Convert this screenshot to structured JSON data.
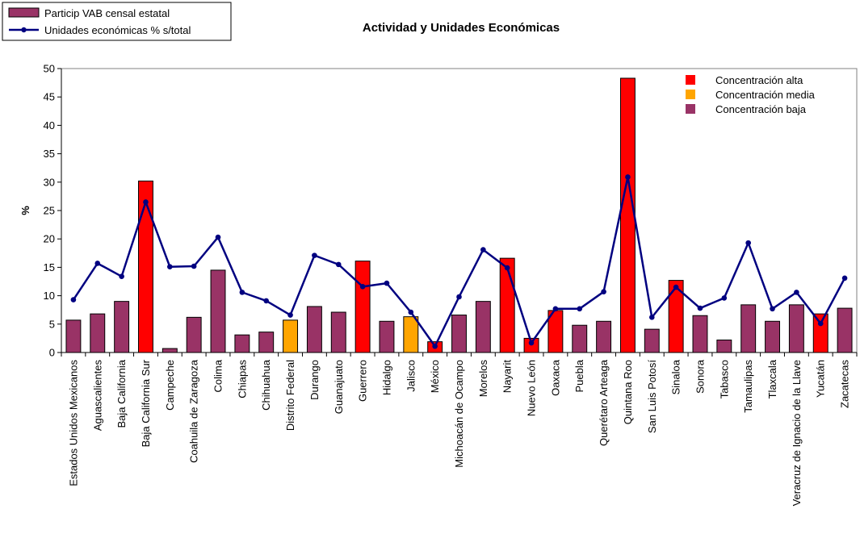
{
  "chart_data": {
    "type": "bar",
    "title": "Actividad y Unidades Económicas",
    "xlabel": "",
    "ylabel": "%",
    "ylim": [
      0,
      50
    ],
    "yticks": [
      0,
      5,
      10,
      15,
      20,
      25,
      30,
      35,
      40,
      45,
      50
    ],
    "grid": false,
    "categories": [
      "Estados Unidos Mexicanos",
      "Aguascalientes",
      "Baja California",
      "Baja California Sur",
      "Campeche",
      "Coahuila de Zaragoza",
      "Colima",
      "Chiapas",
      "Chihuahua",
      "Distrito Federal",
      "Durango",
      "Guanajuato",
      "Guerrero",
      "Hidalgo",
      "Jalisco",
      "México",
      "Michoacán de Ocampo",
      "Morelos",
      "Nayarit",
      "Nuevo León",
      "Oaxaca",
      "Puebla",
      "Querétaro Arteaga",
      "Quintana Roo",
      "San Luis Potosí",
      "Sinaloa",
      "Sonora",
      "Tabasco",
      "Tamaulipas",
      "Tlaxcala",
      "Veracruz de Ignacio de la Llave",
      "Yucatán",
      "Zacatecas"
    ],
    "series": [
      {
        "name": "Particip VAB censal estatal",
        "kind": "bar",
        "color": "#993366",
        "values": [
          5.7,
          6.8,
          9.0,
          30.2,
          0.7,
          6.2,
          14.5,
          3.1,
          3.6,
          5.7,
          8.1,
          7.1,
          16.1,
          5.5,
          6.3,
          1.9,
          6.6,
          9.0,
          16.6,
          2.5,
          7.4,
          4.8,
          5.5,
          48.3,
          4.1,
          12.7,
          6.5,
          2.2,
          8.4,
          5.5,
          8.4,
          6.8,
          7.8
        ],
        "concentration": [
          "baja",
          "baja",
          "baja",
          "alta",
          "baja",
          "baja",
          "baja",
          "baja",
          "baja",
          "media",
          "baja",
          "baja",
          "alta",
          "baja",
          "media",
          "alta",
          "baja",
          "baja",
          "alta",
          "alta",
          "alta",
          "baja",
          "baja",
          "alta",
          "baja",
          "alta",
          "baja",
          "baja",
          "baja",
          "baja",
          "baja",
          "alta",
          "baja"
        ]
      },
      {
        "name": "Unidades económicas % s/total",
        "kind": "line",
        "color": "#000080",
        "values": [
          9.3,
          15.7,
          13.4,
          26.5,
          15.1,
          15.2,
          20.3,
          10.6,
          9.1,
          6.6,
          17.1,
          15.5,
          11.6,
          12.2,
          7.1,
          1.1,
          9.8,
          18.1,
          14.9,
          1.7,
          7.7,
          7.7,
          10.7,
          30.9,
          6.2,
          11.5,
          7.8,
          9.6,
          19.3,
          7.7,
          10.6,
          5.1,
          13.1
        ]
      }
    ],
    "concentration_colors": {
      "alta": "#ff0000",
      "media": "#ffa500",
      "baja": "#993366"
    },
    "concentration_legend": [
      {
        "key": "alta",
        "label": "Concentración alta"
      },
      {
        "key": "media",
        "label": "Concentración media"
      },
      {
        "key": "baja",
        "label": "Concentración baja"
      }
    ],
    "series_legend_position": "top-left",
    "concentration_legend_position": "top-right"
  }
}
